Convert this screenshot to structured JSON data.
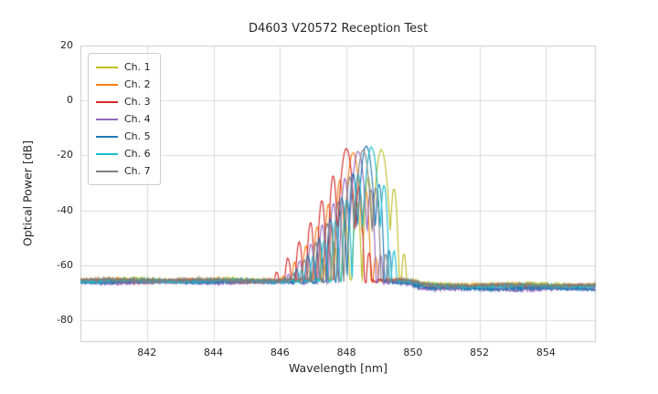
{
  "chart_data": {
    "type": "line",
    "title": "D4603 V20572 Reception Test",
    "xlabel": "Wavelength [nm]",
    "ylabel": "Optical Power [dB]",
    "xlim": [
      840.0,
      855.5
    ],
    "ylim": [
      -88,
      20
    ],
    "xticks": [
      842,
      844,
      846,
      848,
      850,
      852,
      854
    ],
    "yticks": [
      20,
      0,
      -20,
      -40,
      -60,
      -80
    ],
    "grid": true,
    "grid_color": "#dcdcdc",
    "border_color": "#cccccc",
    "legend_position": "upper-left",
    "series": [
      {
        "name": "Ch. 1",
        "color": "#bcbd22",
        "center_nm": 849.05,
        "peak_db": -18.0,
        "floor_left_db": -65.3,
        "floor_right_db": -67.0
      },
      {
        "name": "Ch. 2",
        "color": "#ff7f0e",
        "center_nm": 848.2,
        "peak_db": -19.0,
        "floor_left_db": -65.6,
        "floor_right_db": -67.4
      },
      {
        "name": "Ch. 3",
        "color": "#d62728",
        "center_nm": 848.0,
        "peak_db": -17.5,
        "floor_left_db": -65.9,
        "floor_right_db": -67.8
      },
      {
        "name": "Ch. 4",
        "color": "#9467bd",
        "center_nm": 848.35,
        "peak_db": -18.5,
        "floor_left_db": -66.3,
        "floor_right_db": -68.8
      },
      {
        "name": "Ch. 5",
        "color": "#1f77b4",
        "center_nm": 848.6,
        "peak_db": -16.5,
        "floor_left_db": -66.0,
        "floor_right_db": -68.5
      },
      {
        "name": "Ch. 6",
        "color": "#17becf",
        "center_nm": 848.75,
        "peak_db": -17.0,
        "floor_left_db": -65.7,
        "floor_right_db": -67.6
      },
      {
        "name": "Ch. 7",
        "color": "#7f7f7f",
        "center_nm": 848.5,
        "peak_db": -18.0,
        "floor_left_db": -65.5,
        "floor_right_db": -67.3
      }
    ],
    "signal_shape": {
      "lobes": [
        [
          0.0,
          0,
          0.17
        ],
        [
          -0.4,
          -10,
          0.1
        ],
        [
          -0.74,
          -19,
          0.1
        ],
        [
          -1.08,
          -27,
          0.1
        ],
        [
          -1.42,
          -34,
          0.11
        ],
        [
          -1.76,
          -40,
          0.12
        ],
        [
          -2.1,
          -45,
          0.13
        ],
        [
          -2.45,
          -48,
          0.14
        ],
        [
          0.38,
          -14,
          0.095
        ],
        [
          0.68,
          -38,
          0.09
        ],
        [
          0.95,
          -52,
          0.09
        ]
      ],
      "lobe_sharpness": 12,
      "floor_transition_nm": 850.1,
      "floor_transition_width_nm": 0.15,
      "sample_step_nm": 0.015,
      "floor_noise_db": 1.2,
      "signal_noise_db": 0.5
    }
  }
}
